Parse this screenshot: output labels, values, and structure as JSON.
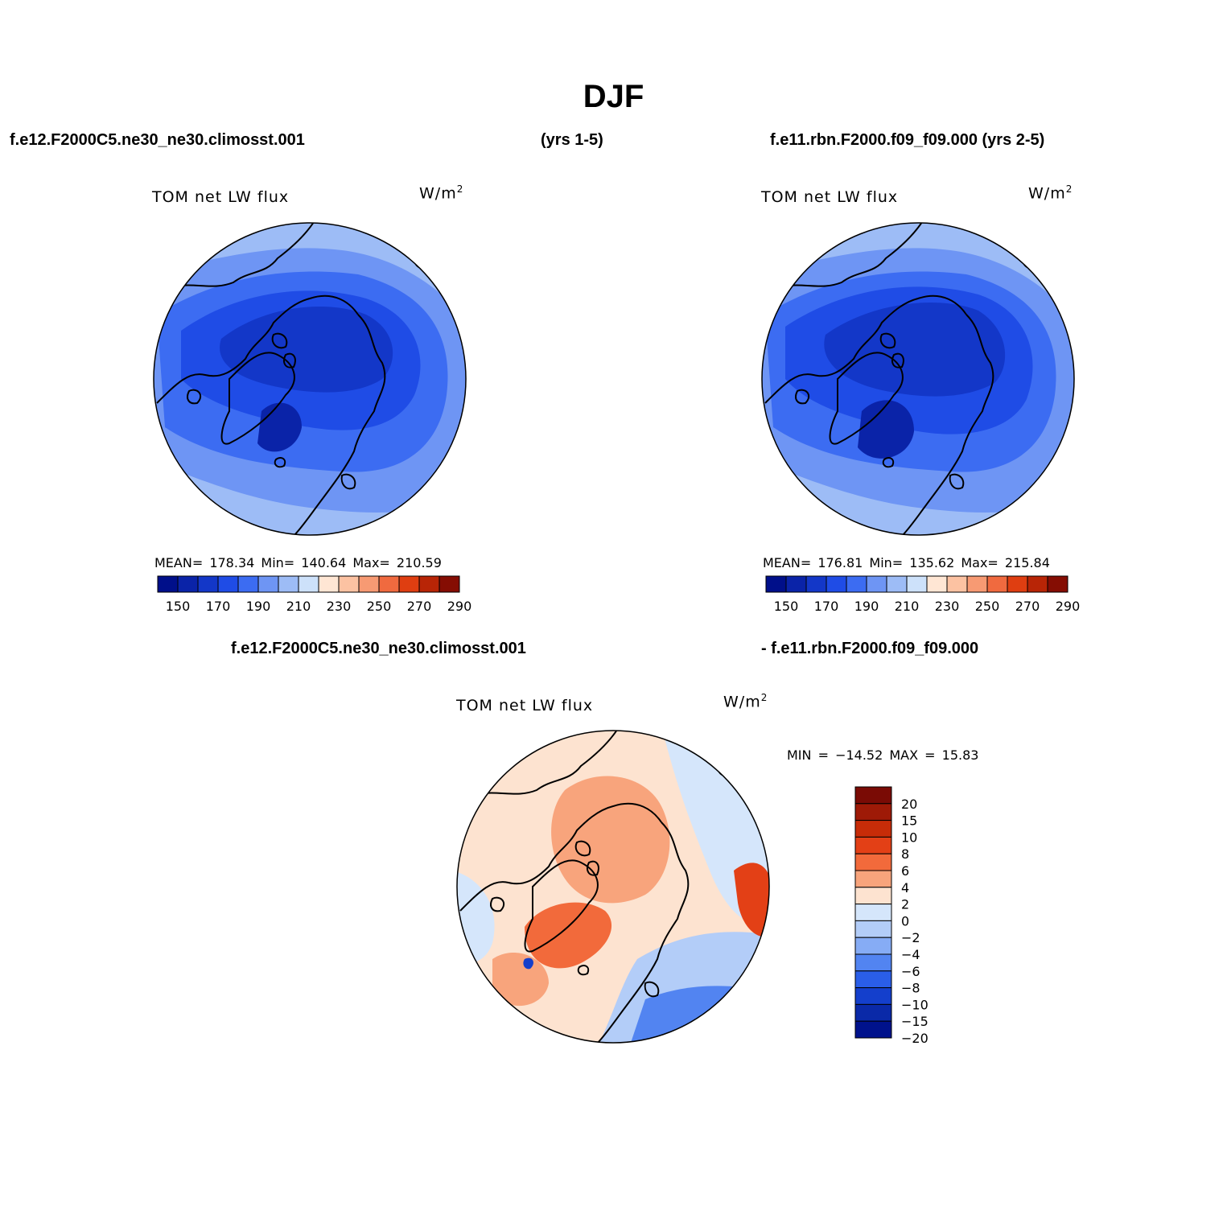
{
  "title": "DJF",
  "header": {
    "case1": "f.e12.F2000C5.ne30_ne30.climosst.001",
    "years1": "(yrs 1-5)",
    "case2": "f.e11.rbn.F2000.f09_f09.000 (yrs 2-5)",
    "diff_case1": "f.e12.F2000C5.ne30_ne30.climosst.001",
    "diff_case2": "- f.e11.rbn.F2000.f09_f09.000"
  },
  "panels": [
    {
      "label": "TOM net LW flux",
      "units": "W/m",
      "units_exp": "2",
      "stats": "MEAN= 178.34   Min= 140.64   Max= 210.59"
    },
    {
      "label": "TOM net LW flux",
      "units": "W/m",
      "units_exp": "2",
      "stats": "MEAN= 176.81   Min= 135.62   Max= 215.84"
    },
    {
      "label": "TOM net LW flux",
      "units": "W/m",
      "units_exp": "2",
      "stats": "MIN = −14.52 MAX =   15.83"
    }
  ],
  "abs_colorbar": {
    "colors": [
      "#000f8a",
      "#0a23a8",
      "#1337c8",
      "#1f4ce6",
      "#3c6cf2",
      "#6e95f4",
      "#9dbcf6",
      "#cde1fa",
      "#ffe6d4",
      "#fcc2a2",
      "#f79a73",
      "#f06a3f",
      "#df3e11",
      "#b82506",
      "#850d03"
    ],
    "ticks": [
      "150",
      "170",
      "190",
      "210",
      "230",
      "250",
      "270",
      "290"
    ]
  },
  "diff_colorbar": {
    "colors": [
      "#7a0b05",
      "#9e1a07",
      "#c72c08",
      "#e34016",
      "#f26a3b",
      "#f8a47c",
      "#fde3d0",
      "#d5e6fb",
      "#b3cdf8",
      "#86acf5",
      "#5284f1",
      "#2a5ee8",
      "#143fcc",
      "#0a29a8",
      "#00128c"
    ],
    "ticks": [
      "20",
      "15",
      "10",
      "8",
      "6",
      "4",
      "2",
      "0",
      "−2",
      "−4",
      "−6",
      "−8",
      "−10",
      "−15",
      "−20"
    ]
  },
  "chart_data": [
    {
      "type": "heatmap",
      "title": "TOM net LW flux",
      "units": "W/m2",
      "case": "f.e12.F2000C5.ne30_ne30.climosst.001 (yrs 1-5)",
      "projection": "polar stereographic, north pole",
      "mean": 178.34,
      "min": 140.64,
      "max": 210.59,
      "contour_levels": [
        150,
        160,
        170,
        180,
        190,
        200,
        210,
        220,
        230,
        240,
        250,
        260,
        270,
        280,
        290
      ]
    },
    {
      "type": "heatmap",
      "title": "TOM net LW flux",
      "units": "W/m2",
      "case": "f.e11.rbn.F2000.f09_f09.000 (yrs 2-5)",
      "projection": "polar stereographic, north pole",
      "mean": 176.81,
      "min": 135.62,
      "max": 215.84,
      "contour_levels": [
        150,
        160,
        170,
        180,
        190,
        200,
        210,
        220,
        230,
        240,
        250,
        260,
        270,
        280,
        290
      ]
    },
    {
      "type": "heatmap",
      "title": "TOM net LW flux",
      "units": "W/m2",
      "case": "f.e12.F2000C5.ne30_ne30.climosst.001 - f.e11.rbn.F2000.f09_f09.000",
      "projection": "polar stereographic, north pole",
      "min": -14.52,
      "max": 15.83,
      "contour_levels": [
        -20,
        -15,
        -10,
        -8,
        -6,
        -4,
        -2,
        0,
        2,
        4,
        6,
        8,
        10,
        15,
        20
      ]
    }
  ]
}
